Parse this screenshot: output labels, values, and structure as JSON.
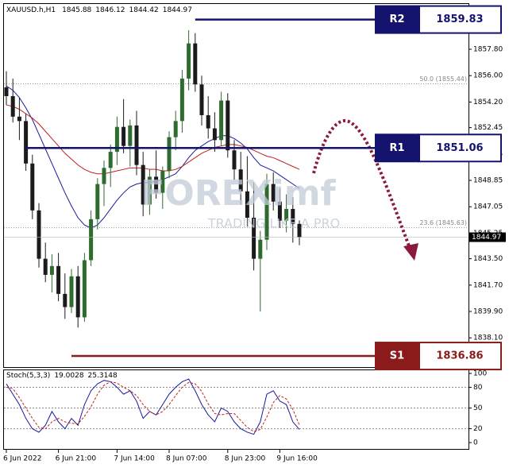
{
  "chart_data": [
    {
      "type": "candlestick",
      "title": "XAUUSD.h,H1",
      "categories": [
        "6 Jun 2022",
        null,
        null,
        null,
        null,
        null,
        null,
        null,
        "6 Jun 21:00",
        null,
        null,
        null,
        null,
        null,
        null,
        null,
        null,
        "7 Jun 14:00",
        null,
        null,
        null,
        null,
        null,
        null,
        null,
        "8 Jun 07:00",
        null,
        null,
        null,
        null,
        null,
        null,
        null,
        null,
        "8 Jun 23:00",
        null,
        null,
        null,
        null,
        null,
        null,
        null,
        "9 Jun 16:00",
        null,
        null,
        null
      ],
      "open": [
        1855.2,
        1854.6,
        1853.2,
        1852.9,
        1850.0,
        1846.8,
        1843.5,
        1842.4,
        1843.0,
        1841.1,
        1840.2,
        1842.3,
        1839.5,
        1843.4,
        1846.2,
        1848.6,
        1849.7,
        1850.8,
        1852.5,
        1851.2,
        1852.6,
        1849.9,
        1847.2,
        1849.1,
        1848.0,
        1849.5,
        1851.8,
        1852.9,
        1855.8,
        1858.2,
        1855.4,
        1853.3,
        1852.4,
        1851.6,
        1854.3,
        1850.9,
        1849.6,
        1848.1,
        1846.3,
        1843.5,
        1844.8,
        1848.6,
        1847.4,
        1846.1,
        1846.9,
        1845.88
      ],
      "high": [
        1856.3,
        1855.8,
        1854.5,
        1853.4,
        1850.6,
        1847.3,
        1844.6,
        1843.8,
        1843.9,
        1842.5,
        1842.8,
        1843.0,
        1843.9,
        1846.8,
        1849.0,
        1850.2,
        1851.3,
        1853.2,
        1854.4,
        1853.0,
        1853.6,
        1850.8,
        1849.6,
        1850.9,
        1849.8,
        1852.2,
        1853.6,
        1856.4,
        1859.1,
        1858.9,
        1856.0,
        1854.6,
        1853.5,
        1854.9,
        1854.8,
        1851.6,
        1850.8,
        1850.5,
        1848.7,
        1845.4,
        1849.3,
        1849.4,
        1848.3,
        1847.9,
        1847.7,
        1846.12
      ],
      "low": [
        1854.0,
        1852.8,
        1851.6,
        1849.5,
        1846.2,
        1842.9,
        1841.9,
        1841.2,
        1840.6,
        1839.4,
        1839.8,
        1838.8,
        1839.2,
        1843.0,
        1845.5,
        1847.1,
        1848.4,
        1849.9,
        1850.7,
        1849.8,
        1849.2,
        1846.4,
        1846.5,
        1847.6,
        1846.9,
        1849.0,
        1850.9,
        1852.1,
        1855.0,
        1854.9,
        1852.6,
        1851.7,
        1850.8,
        1851.2,
        1850.4,
        1848.9,
        1847.2,
        1845.7,
        1842.7,
        1839.9,
        1844.1,
        1846.8,
        1845.6,
        1845.3,
        1844.6,
        1844.42
      ],
      "close": [
        1854.6,
        1853.2,
        1852.9,
        1850.0,
        1846.8,
        1843.5,
        1842.4,
        1843.0,
        1841.1,
        1840.2,
        1842.3,
        1839.5,
        1843.4,
        1846.2,
        1848.6,
        1849.7,
        1850.8,
        1852.5,
        1851.2,
        1852.6,
        1849.9,
        1847.2,
        1849.1,
        1848.0,
        1849.5,
        1851.8,
        1852.9,
        1855.8,
        1858.2,
        1855.4,
        1853.3,
        1852.4,
        1851.6,
        1854.3,
        1850.9,
        1849.6,
        1848.1,
        1846.3,
        1843.5,
        1844.8,
        1848.6,
        1847.4,
        1846.1,
        1846.9,
        1845.88,
        1844.97
      ],
      "up_color": "#2e6b2e",
      "down_color": "#1b1b1b",
      "lines": [
        {
          "color": "#1a1aa0",
          "values": [
            1855.3,
            1855.0,
            1854.5,
            1853.8,
            1853.0,
            1852.0,
            1851.0,
            1850.0,
            1849.0,
            1848.0,
            1847.1,
            1846.3,
            1845.8,
            1845.6,
            1845.8,
            1846.3,
            1846.9,
            1847.5,
            1848.0,
            1848.4,
            1848.6,
            1848.7,
            1848.7,
            1848.8,
            1848.9,
            1849.1,
            1849.3,
            1849.8,
            1850.4,
            1850.9,
            1851.2,
            1851.5,
            1851.7,
            1851.9,
            1851.9,
            1851.7,
            1851.4,
            1851.0,
            1850.4,
            1849.9,
            1849.7,
            1849.5,
            1849.2,
            1848.9,
            1848.6,
            1848.3
          ]
        },
        {
          "color": "#c0201f",
          "values": [
            1854.0,
            1853.9,
            1853.7,
            1853.4,
            1853.1,
            1852.7,
            1852.2,
            1851.7,
            1851.2,
            1850.7,
            1850.3,
            1849.9,
            1849.6,
            1849.4,
            1849.3,
            1849.3,
            1849.4,
            1849.5,
            1849.6,
            1849.7,
            1849.7,
            1849.7,
            1849.6,
            1849.6,
            1849.5,
            1849.5,
            1849.6,
            1849.8,
            1850.1,
            1850.4,
            1850.7,
            1850.9,
            1851.1,
            1851.2,
            1851.3,
            1851.3,
            1851.2,
            1851.1,
            1850.9,
            1850.7,
            1850.5,
            1850.4,
            1850.2,
            1850.0,
            1849.8,
            1849.6
          ]
        }
      ],
      "ylim": [
        1836.32,
        1860.73
      ],
      "yticks": [
        {
          "value": 1857.8,
          "label": "1857.80"
        },
        {
          "value": 1856,
          "label": "1856.00"
        },
        {
          "value": 1854.2,
          "label": "1854.20"
        },
        1852.45,
        1850.65,
        1848.85,
        1847.05,
        1845.25,
        {
          "value": 1843.5,
          "label": "1843.50"
        },
        {
          "value": 1841.7,
          "label": "1841.70"
        },
        {
          "value": 1839.9,
          "label": "1839.90"
        },
        {
          "value": 1838.1,
          "label": "1838.10"
        }
      ],
      "levels": [
        {
          "name": "R2",
          "value": 1859.83,
          "color": "#14146e"
        },
        {
          "name": "R1",
          "value": 1851.06,
          "color": "#14146e"
        },
        {
          "name": "S1",
          "value": 1836.86,
          "color": "#8b1a1a"
        }
      ],
      "fib_levels": [
        {
          "label": "50.0 (1855.44)",
          "value": 1855.44
        },
        {
          "label": "23.6 (1845.63)",
          "value": 1845.63
        }
      ],
      "watermark": {
        "brand": "FOREXimf",
        "slogan": "TRADING LIKE A PRO"
      }
    },
    {
      "type": "line",
      "title": "Stoch(5,3,3)",
      "ylim": [
        0,
        100
      ],
      "yticks": [
        0,
        20,
        50,
        80,
        100
      ],
      "level_lines": [
        20,
        50,
        80
      ],
      "series": [
        {
          "color": "#1a1aa0",
          "values": [
            85,
            70,
            55,
            35,
            20,
            15,
            25,
            45,
            30,
            20,
            35,
            25,
            55,
            75,
            85,
            90,
            88,
            80,
            70,
            75,
            60,
            35,
            45,
            40,
            55,
            70,
            80,
            88,
            92,
            75,
            55,
            40,
            30,
            50,
            45,
            30,
            20,
            15,
            12,
            30,
            70,
            75,
            60,
            55,
            30,
            19.0028
          ]
        },
        {
          "color": "#c0201f",
          "dashed": true,
          "values": [
            80,
            78,
            65,
            50,
            35,
            22,
            20,
            30,
            35,
            30,
            28,
            27,
            38,
            52,
            70,
            83,
            88,
            86,
            80,
            75,
            68,
            55,
            45,
            40,
            45,
            55,
            68,
            80,
            87,
            85,
            74,
            56,
            42,
            40,
            42,
            42,
            32,
            22,
            16,
            19,
            37,
            58,
            68,
            63,
            48,
            25.3148
          ]
        }
      ]
    }
  ]
}
